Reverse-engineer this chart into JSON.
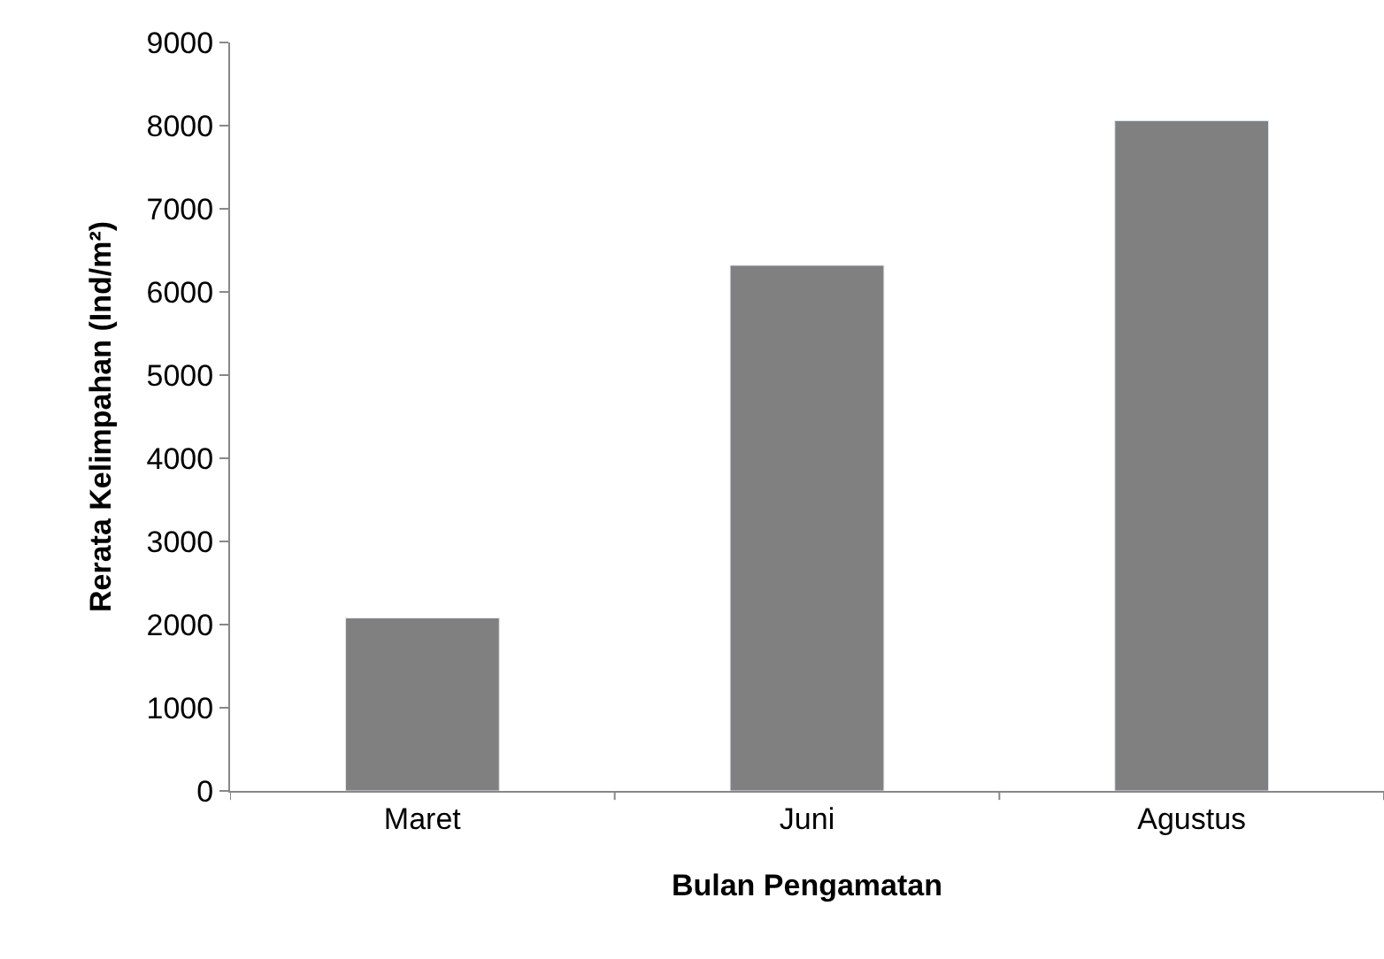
{
  "chart_data": {
    "type": "bar",
    "xlabel": "Bulan Pengamatan",
    "ylabel": "Rerata Kelimpahan (Ind/m²)",
    "categories": [
      "Maret",
      "Juni",
      "Agustus"
    ],
    "values": [
      2080,
      6320,
      8060
    ],
    "color": "#808080",
    "ylim": [
      0,
      9000
    ],
    "yticks": [
      0,
      1000,
      2000,
      3000,
      4000,
      5000,
      6000,
      7000,
      8000,
      9000
    ]
  }
}
